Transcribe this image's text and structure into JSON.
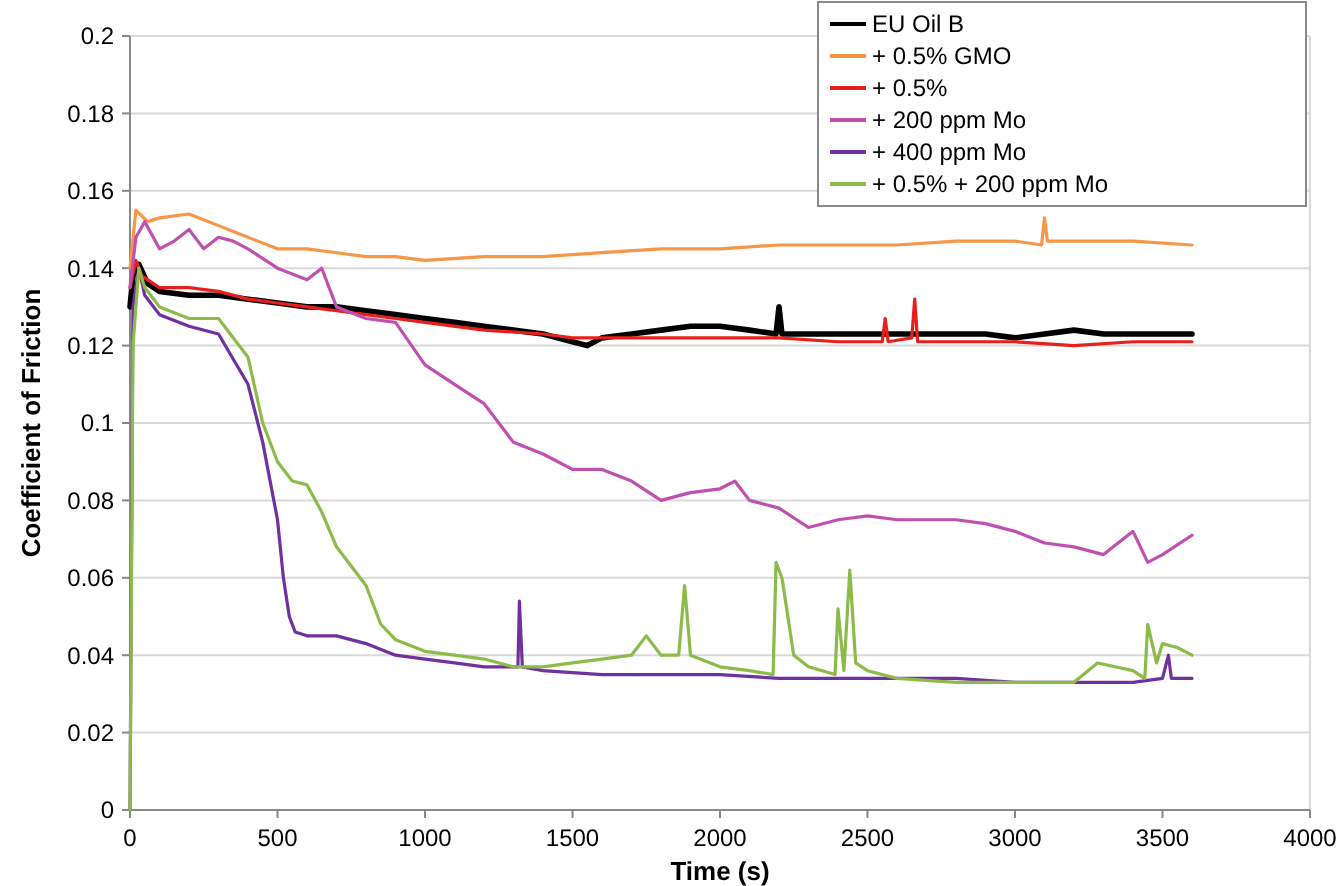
{
  "chart_data": {
    "type": "line",
    "xlabel": "Time (s)",
    "ylabel": "Coefficient of Friction",
    "xlim": [
      0,
      4000
    ],
    "xticks": [
      0,
      500,
      1000,
      1500,
      2000,
      2500,
      3000,
      3500,
      4000
    ],
    "ylim": [
      0,
      0.2
    ],
    "yticks": [
      0,
      0.02,
      0.04,
      0.06,
      0.08,
      0.1,
      0.12,
      0.14,
      0.16,
      0.18,
      0.2
    ],
    "grid": "y",
    "legend": "top right",
    "marker": "none",
    "line_style": "solid",
    "series": [
      {
        "name": "EU Oil B",
        "color": "#000000",
        "x": [
          0,
          10,
          30,
          60,
          100,
          200,
          300,
          400,
          500,
          600,
          700,
          800,
          900,
          1000,
          1100,
          1200,
          1300,
          1400,
          1500,
          1550,
          1600,
          1700,
          1800,
          1900,
          2000,
          2100,
          2190,
          2200,
          2210,
          2300,
          2400,
          2500,
          2600,
          2700,
          2800,
          2900,
          3000,
          3100,
          3200,
          3300,
          3400,
          3500,
          3600
        ],
        "values": [
          0.13,
          0.138,
          0.141,
          0.136,
          0.134,
          0.133,
          0.133,
          0.132,
          0.131,
          0.13,
          0.13,
          0.129,
          0.128,
          0.127,
          0.126,
          0.125,
          0.124,
          0.123,
          0.121,
          0.12,
          0.122,
          0.123,
          0.124,
          0.125,
          0.125,
          0.124,
          0.123,
          0.13,
          0.123,
          0.123,
          0.123,
          0.123,
          0.123,
          0.123,
          0.123,
          0.123,
          0.122,
          0.123,
          0.124,
          0.123,
          0.123,
          0.123,
          0.123
        ]
      },
      {
        "name": "+ 0.5% GMO",
        "color": "#f79646",
        "x": [
          0,
          20,
          60,
          100,
          200,
          300,
          400,
          500,
          600,
          700,
          800,
          900,
          1000,
          1200,
          1400,
          1600,
          1800,
          2000,
          2200,
          2400,
          2600,
          2800,
          3000,
          3090,
          3100,
          3110,
          3200,
          3400,
          3600
        ],
        "values": [
          0.14,
          0.155,
          0.152,
          0.153,
          0.154,
          0.151,
          0.148,
          0.145,
          0.145,
          0.144,
          0.143,
          0.143,
          0.142,
          0.143,
          0.143,
          0.144,
          0.145,
          0.145,
          0.146,
          0.146,
          0.146,
          0.147,
          0.147,
          0.146,
          0.153,
          0.147,
          0.147,
          0.147,
          0.146
        ]
      },
      {
        "name": "+ 0.5%",
        "color": "#e8201c",
        "x": [
          0,
          20,
          40,
          100,
          200,
          300,
          400,
          500,
          600,
          700,
          800,
          900,
          1000,
          1200,
          1400,
          1500,
          1600,
          1800,
          2000,
          2200,
          2400,
          2550,
          2560,
          2570,
          2650,
          2660,
          2670,
          2800,
          3000,
          3200,
          3400,
          3600
        ],
        "values": [
          0.135,
          0.142,
          0.138,
          0.135,
          0.135,
          0.134,
          0.132,
          0.131,
          0.13,
          0.129,
          0.128,
          0.127,
          0.126,
          0.124,
          0.123,
          0.122,
          0.122,
          0.122,
          0.122,
          0.122,
          0.121,
          0.121,
          0.127,
          0.121,
          0.122,
          0.132,
          0.121,
          0.121,
          0.121,
          0.12,
          0.121,
          0.121
        ]
      },
      {
        "name": "+ 200 ppm Mo",
        "color": "#c050b0",
        "x": [
          0,
          20,
          50,
          100,
          150,
          200,
          250,
          300,
          350,
          400,
          500,
          600,
          650,
          700,
          800,
          900,
          1000,
          1100,
          1200,
          1300,
          1400,
          1500,
          1600,
          1700,
          1800,
          1900,
          2000,
          2050,
          2100,
          2200,
          2300,
          2400,
          2500,
          2600,
          2700,
          2800,
          2900,
          3000,
          3100,
          3200,
          3300,
          3400,
          3450,
          3500,
          3600
        ],
        "values": [
          0.135,
          0.148,
          0.152,
          0.145,
          0.147,
          0.15,
          0.145,
          0.148,
          0.147,
          0.145,
          0.14,
          0.137,
          0.14,
          0.13,
          0.127,
          0.126,
          0.115,
          0.11,
          0.105,
          0.095,
          0.092,
          0.088,
          0.088,
          0.085,
          0.08,
          0.082,
          0.083,
          0.085,
          0.08,
          0.078,
          0.073,
          0.075,
          0.076,
          0.075,
          0.075,
          0.075,
          0.074,
          0.072,
          0.069,
          0.068,
          0.066,
          0.072,
          0.064,
          0.066,
          0.071
        ]
      },
      {
        "name": "+ 400 ppm Mo",
        "color": "#7030a0",
        "x": [
          0,
          10,
          30,
          50,
          100,
          200,
          300,
          400,
          450,
          500,
          520,
          540,
          560,
          600,
          700,
          800,
          900,
          1000,
          1100,
          1200,
          1300,
          1315,
          1320,
          1330,
          1400,
          1600,
          1800,
          2000,
          2200,
          2400,
          2600,
          2800,
          3000,
          3200,
          3400,
          3500,
          3520,
          3530,
          3600
        ],
        "values": [
          0,
          0.13,
          0.14,
          0.133,
          0.128,
          0.125,
          0.123,
          0.11,
          0.095,
          0.075,
          0.06,
          0.05,
          0.046,
          0.045,
          0.045,
          0.043,
          0.04,
          0.039,
          0.038,
          0.037,
          0.037,
          0.037,
          0.054,
          0.037,
          0.036,
          0.035,
          0.035,
          0.035,
          0.034,
          0.034,
          0.034,
          0.034,
          0.033,
          0.033,
          0.033,
          0.034,
          0.04,
          0.034,
          0.034
        ]
      },
      {
        "name": "+ 0.5% + 200 ppm Mo",
        "color": "#8cbb4a",
        "x": [
          0,
          10,
          30,
          50,
          100,
          200,
          300,
          400,
          450,
          500,
          550,
          600,
          650,
          700,
          800,
          850,
          900,
          1000,
          1100,
          1200,
          1300,
          1400,
          1500,
          1600,
          1700,
          1750,
          1800,
          1860,
          1880,
          1900,
          2000,
          2100,
          2180,
          2190,
          2210,
          2250,
          2300,
          2390,
          2400,
          2420,
          2440,
          2460,
          2500,
          2600,
          2800,
          3000,
          3200,
          3280,
          3400,
          3440,
          3450,
          3480,
          3500,
          3550,
          3600
        ],
        "values": [
          0,
          0.12,
          0.14,
          0.135,
          0.13,
          0.127,
          0.127,
          0.117,
          0.1,
          0.09,
          0.085,
          0.084,
          0.077,
          0.068,
          0.058,
          0.048,
          0.044,
          0.041,
          0.04,
          0.039,
          0.037,
          0.037,
          0.038,
          0.039,
          0.04,
          0.045,
          0.04,
          0.04,
          0.058,
          0.04,
          0.037,
          0.036,
          0.035,
          0.064,
          0.06,
          0.04,
          0.037,
          0.035,
          0.052,
          0.036,
          0.062,
          0.038,
          0.036,
          0.034,
          0.033,
          0.033,
          0.033,
          0.038,
          0.036,
          0.034,
          0.048,
          0.038,
          0.043,
          0.042,
          0.04
        ]
      }
    ]
  }
}
